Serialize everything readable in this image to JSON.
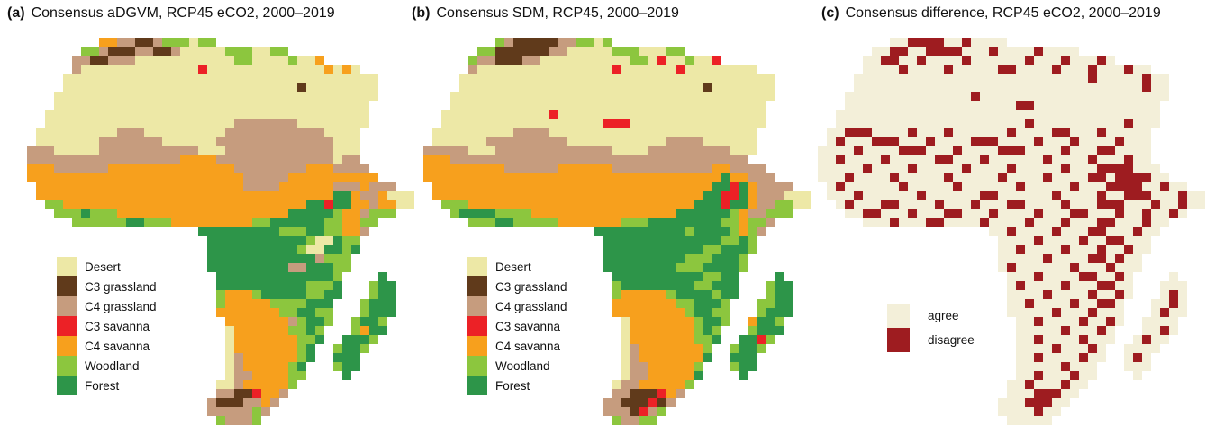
{
  "figure": {
    "background": "#ffffff",
    "text_color": "#111111"
  },
  "palette": {
    "D": "#EDE8A6",
    "B": "#603A1B",
    "T": "#C69C7E",
    "R": "#EC2126",
    "O": "#F7A01D",
    "W": "#8CC63E",
    "F": "#2D9549",
    "a": "#F3EFD9",
    "x": "#9E1C20"
  },
  "panels": [
    {
      "id": "a",
      "label": "(a)",
      "title": "Consensus aDGVM, RCP45 eCO2, 2000–2019",
      "legend": [
        {
          "label": "Desert",
          "key": "D"
        },
        {
          "label": "C3 grassland",
          "key": "B"
        },
        {
          "label": "C4 grassland",
          "key": "T"
        },
        {
          "label": "C3 savanna",
          "key": "R"
        },
        {
          "label": "C4 savanna",
          "key": "O"
        },
        {
          "label": "Woodland",
          "key": "W"
        },
        {
          "label": "Forest",
          "key": "F"
        }
      ],
      "grid": [
        "........OOTTBBTWWWDWW......................",
        "......WWTBBBTTBBTDDDDDWWWDDWW..............",
        ".....TTBBTTTDDDDDDDDDDDWWDDDDWDDO..........",
        ".....TDDDDDDDDDDDDDRDDDDDDDDDDDDDODOD......",
        "....DDDDDDDDDDDDDDDDDDDDDDDDDDDDDDDDDDD....",
        "....DDDDDDDDDDDDDDDDDDDDDDDDDDBDDDDDDDD....",
        "...DDDDDDDDDDDDDDDDDDDDDDDDDDDDDDDDDDDD....",
        "...DDDDDDDDDDDDDDDDDDDDDDDDDDDDDDDDDDD.....",
        "..DDDDDDDDDDDDDDDDDDDDDDDDDDDDDDDDDDDD.....",
        "..DDDDDDDDDDDDDDDDDDDDDTTTTTTTDDDDDDDD.....",
        ".DDDDDDDDDTTTDDDDDDDDDTTTTTTTTTTTDDDD......",
        ".DDDDDDDTTTTTTTDDDDDDTTTTTTTTTTTTTDDD......",
        "TTTDDDDDTTTTTTTTTTTDDDTTTTTTTTTTTTDDD......",
        "TTTTTTTTTTTTTTTTTOOOOTTTTTTTTTTTTTDTT......",
        "OOOTTTTTTOOOOOOOOOOOOOOTTTTTTTTOOOTTTT.....",
        "OOOOOOOOOOOOOOOOOOOOOOOOTTTTTOOOOOOOOOO....",
        ".OOOOOOOOOOOOOOOOOOOOOOOTTTTOOOOOOTTTOTTT..",
        ".OOOOOOOOOOOOOOOOOOOOOOOOOOOOOOOOOFFOTTODDD",
        "..WWOOOOOOOOOOOOOOOOOOOOOOOOOOOFFRFFOOTOODD",
        "...WWWFWWWOOOOOOOOOOOOOOOOOOOFFFFFWOOTWWW..",
        ".....WWWWWWFFWWWOOOOOOOOOWWFFFFFFWWOOWW....",
        "...................FFFFFFFFFWWWFFWWOOT.....",
        "....................FFFFFFFFFFFWDDFWW......",
        "....................FFFFFFFFFFWDDFFWF......",
        "....................FFFFFFFFFFFFTWWW.......",
        "....................FFFFFFFFFTTFFFWW.......",
        ".....................FFFFFFFFFFFFFW....F...",
        ".....................FFFFFFFFFFWWWF...WFF..",
        ".....................WOOOWFFFFFWWFF...WFF..",
        ".....................WOOOOOWWWWFFF...WFFF..",
        ".....................OOOOOOOWWFFWW...WFFF..",
        "......................OOOOOOOTWFFW..WFFW...",
        "......................DOOOOOOWWFW...WOFF...",
        "......................DOOOOOOOWWF..FFFW....",
        "......................DOOOOOOOWF..WFFW.....",
        "......................DTOOOOOOWF..FFF......",
        "......................DTOOOOOWF...WFF......",
        "......................DTTOOOOWW....F.......",
        ".....................DDTOOOOOW.............",
        ".....................TTBBROOT..............",
        "....................TBBBTTOT...............",
        "....................TTTTTWT................",
        ".....................WTTTW................."
      ]
    },
    {
      "id": "b",
      "label": "(b)",
      "title": "Consensus SDM, RCP45, 2000–2019",
      "legend": [
        {
          "label": "Desert",
          "key": "D"
        },
        {
          "label": "C3 grassland",
          "key": "B"
        },
        {
          "label": "C4 grassland",
          "key": "T"
        },
        {
          "label": "C3 savanna",
          "key": "R"
        },
        {
          "label": "C4 savanna",
          "key": "O"
        },
        {
          "label": "Woodland",
          "key": "W"
        },
        {
          "label": "Forest",
          "key": "F"
        }
      ],
      "grid": [
        "........WTBBBBBTTWWDW......................",
        "......WWBBBBBBTTDDDDDWWWDDDWW..............",
        ".....WTTBBBTTDDDDDDDDDDWWDRDDWDDR..........",
        ".....TDDDDDDDDDDDDDDDRDDDDDDRDDDDDDDD......",
        "....DDDDDDDDDDDDDDDDDDDDDDDDDDDDDDDDDDD....",
        "....DDDDDDDDDDDDDDDDDDDDDDDDDDDBDDDDDDD....",
        "...DDDDDDDDDDDDDDDDDDDDDDDDDDDDDDDDDDDD....",
        "...DDDDDDDDDDDDDDDDDDDDDDDDDDDDDDDDDDD.....",
        "..DDDDDDDDDDDDRDDDDDDDDDDDDDDDDDDDDDDD.....",
        "..DDDDDDDDDDDDDDDDDDRRRDDDDDDDDDDDDDDD.....",
        ".DDDDDDDDDTTTTDDDDDDDDDDDDDDDDDDDDDDD......",
        ".DDDDDDTTTTTTTTTDDDDDDDDDDDTTTTDDDDDD......",
        "TTTTTDDDTTTTTTTTTTTTTDDDDTTTTTTTTTDDD......",
        "OOOTTTTTTTTTTTTTTTTTTTTTTTTTTTTTTTTT......",
        "OOOOOOOOOTTTTTTOOOOOOTTTTTTTTTTTOOTTTT.....",
        "OOOOOOOOOOOOOOOOOOOOOOOOOOOOOOOOOFOOTTT....",
        ".OOOOOOOOOOOOOOOOOOOOOOOOOOOOOOOFFRFOTTTT..",
        ".OOOOOOOOOOOOOOOOOOOOOOOOOOOOOOFFRRFOTTTDDD",
        "..WWWOOOOOOOOOOOOOOOOOOOOOOOOOFFFRFFOTTWWDD",
        "...WFFFFWWWWOOOOOOOOOOOOOOOOFFFFFFWOTTWWW..",
        ".....WWWFFWWWWWOOOOOOOWWWFFFFFFFFWWOWWT....",
        "...................FFFFFFFFFFWFFFFWOWT.....",
        "....................FFFFFFFFFFFFFWWFW......",
        "....................FFFFFFFFFFFWWFFFW......",
        "....................FFFFFFFFFWWWFFFW.......",
        "....................FFFFFFFFWWWFFFFW.......",
        ".....................FFFFFFFFFFWWFF....F...",
        ".....................WFFFFFFFFWWFFF...WFF..",
        ".....................WOOOOOWFFFFWFF...WFF..",
        ".....................OOOOOOOWWFFFW...WWFF..",
        ".....................OOOOOOOOWFFWW...WFFF..",
        "......................DOOOOOOOWFFW..OFFW...",
        "......................DOOOOOOOWFW...WFFF...",
        "......................DOOOOOOOWWF..FFRW....",
        "......................DTOOOOOOOW..WFFW.....",
        "......................DTOOOOOOOF..FFF......",
        "......................DTTOOOOOW...WFF......",
        "......................DTTOOOOOF....F.......",
        ".....................DTTOOOOOW.............",
        ".....................TTBBBROT..............",
        "....................TTBBBRBT...............",
        "....................TTTBRTW................",
        ".....................WTTWW................."
      ]
    },
    {
      "id": "c",
      "label": "(c)",
      "title": "Consensus difference, RCP45 eCO2, 2000–2019",
      "legend": [
        {
          "label": "agree",
          "key": "a"
        },
        {
          "label": "disagree",
          "key": "x"
        }
      ],
      "grid": [
        "........aaxxxxaaxaaaa......................",
        "......aaxxaaxxxxaaaxaaaaxaaaa..............",
        ".....aaxxaaxaaaaxaaaaaaxaaaxaaaxa..........",
        ".....aaaaxaaaaxaaaaaxxaaaaxaaaxaaaxaa......",
        "....aaaaaaaaaaaaaaaaaaaaaaaaaaxaaaaaxaa....",
        "....aaaaaaaaaaaaaaaaaaaaaaaaaaaaaaaaxaa....",
        "...aaaaaaaaaaaaaaxaaaaaaaaaaaaaaaaaaaaa....",
        "...aaaaaaaaaaaaaaaaaaaxxaaaaaaaaaaaaaa.....",
        "..aaaaaaaaaaaaaaaaaaaaaaaaaaaaaaaaaaaa.....",
        "..aaaaaaaaaaaaaaaaaaaaaxaaaaaaaaaaxaaa.....",
        ".aaxxxaaaaxaaaxaaaaaaxaaaaxxaaaxaaaaa......",
        ".axaaaxxxaaaxaaaaxxxaaaaxaaaxaaaaxaaa......",
        "aaaaxaaaaxxxaaaxaaaaxxxaaaaxaaaxxaaaa......",
        "aaxaaaaxaaaaaxxaaaxaaaaaaxaaaaxaaaxaa......",
        "aaaaaxaaaaxaaaaaxaaaaxaaaaaxaaaxxxxaaa.....",
        "aaaxaaaaxaaaaaxaaaaaxaaaaxaaaaxxaxxxxaa....",
        ".axaaaaaaxaaaaaxaaaaaaxaaaaaxaaaxxxxaaxaa..",
        ".aaaxaaaaaaxaaaaaaxxaaaaaaxaaaaxaaxxxaaaxaa",
        "..axaaaxxaaaaxaaaxaaaxxaaaaxaaaxxxaaaxaaxaa",
        "...aaxxaaaxaaaxxaaaxaaaaxaaaxxaaaxaaxaaxa..",
        ".....aaaxaaaxxaaaaxaaaaxaaaxaaaxxaaaxaa....",
        "...................aaxaaaaxaaaxxaaaxaa.....",
        "....................aaaaxaaaaxaaxxaaa......",
        "....................aaxaaaaxaaaxaaxaa......",
        "....................aaaaaxaaaaxxaxaa.......",
        "....................axaaaaaaxaaaxaaa.......",
        ".....................aaaxaaaaxxaaxa....a...",
        ".....................axaaaaxaaaxxaa...aaa..",
        ".....................aaaaxaaaaxaaxa...axa..",
        ".....................aaxaaaaxaaxxa...aaxa..",
        ".....................aaaaaxaaaxaaa...axaa..",
        "......................aaxaaaaxaaxa..aaaa...",
        "......................aaaaaxaaaxa...aaxa...",
        "......................aaxaaaaxaaa..axaa....",
        "......................aaaaxaaaxa..aaaa.....",
        "......................aaxaaaaxaa..axa......",
        "......................aaaaaxaaa...aaa......",
        "......................aaxaaaxaa....a.......",
        ".....................aaxaaaxaa.............",
        ".....................aaaxxxaa..............",
        "....................aaaxxxaa...............",
        "....................aaaaxaa................",
        ".....................aaaaa................."
      ]
    }
  ]
}
